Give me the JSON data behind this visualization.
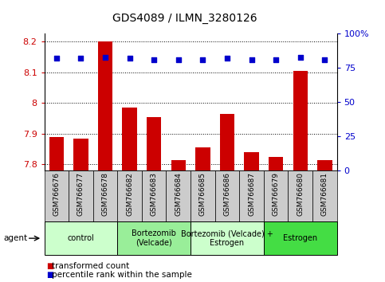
{
  "title": "GDS4089 / ILMN_3280126",
  "samples": [
    "GSM766676",
    "GSM766677",
    "GSM766678",
    "GSM766682",
    "GSM766683",
    "GSM766684",
    "GSM766685",
    "GSM766686",
    "GSM766687",
    "GSM766679",
    "GSM766680",
    "GSM766681"
  ],
  "transformed_count": [
    7.89,
    7.885,
    8.2,
    7.985,
    7.955,
    7.815,
    7.855,
    7.965,
    7.84,
    7.825,
    8.105,
    7.815
  ],
  "percentile_rank": [
    82,
    82,
    83,
    82,
    81,
    81,
    81,
    82,
    81,
    81,
    83,
    81
  ],
  "ymin": 7.78,
  "ymax": 8.225,
  "yleft_ticks": [
    7.8,
    7.9,
    8.0,
    8.1,
    8.2
  ],
  "yleft_labels": [
    "7.8",
    "7.9",
    "8",
    "8.1",
    "8.2"
  ],
  "yright_ticks": [
    0,
    25,
    50,
    75,
    100
  ],
  "yright_labels": [
    "0",
    "25",
    "50",
    "75",
    "100%"
  ],
  "bar_color": "#cc0000",
  "dot_color": "#0000cc",
  "groups": [
    {
      "label": "control",
      "start": 0,
      "end": 3,
      "color": "#ccffcc"
    },
    {
      "label": "Bortezomib\n(Velcade)",
      "start": 3,
      "end": 6,
      "color": "#99ee99"
    },
    {
      "label": "Bortezomib (Velcade) +\nEstrogen",
      "start": 6,
      "end": 9,
      "color": "#ccffcc"
    },
    {
      "label": "Estrogen",
      "start": 9,
      "end": 12,
      "color": "#44dd44"
    }
  ],
  "agent_label": "agent",
  "legend_bar_label": "transformed count",
  "legend_dot_label": "percentile rank within the sample",
  "grid_color": "#000000",
  "background_color": "#ffffff",
  "tick_label_color_left": "#cc0000",
  "tick_label_color_right": "#0000cc",
  "sample_box_color": "#cccccc",
  "bar_width": 0.6
}
